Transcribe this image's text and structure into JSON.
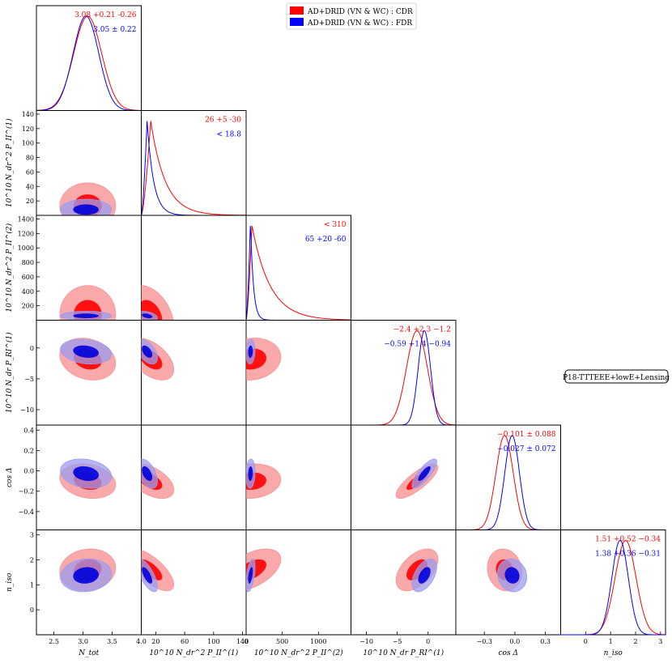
{
  "chart_data": {
    "type": "triangle-posterior",
    "legend": {
      "placement": "top-center",
      "entries": [
        {
          "label": "AD+DRID (VN & WC) : CDR",
          "color": "#ff0000"
        },
        {
          "label": "AD+DRID (VN & WC) : FDR",
          "color": "#0000ff"
        }
      ]
    },
    "data_label": "P18-TTTEEE+lowE+Lensing",
    "colors": {
      "cdr": "#ff0000",
      "fdr": "#0000ff",
      "cdr_fill_outer": "#f89494",
      "cdr_fill_inner": "#ff0000",
      "fdr_fill_outer": "#9c9cf0",
      "fdr_fill_inner": "#0000dd"
    },
    "parameters": [
      {
        "key": "ntot",
        "xlabel": "N_tot",
        "ylabel": "",
        "range": [
          2.2,
          4.0
        ],
        "ticks": [
          2.5,
          3.0,
          3.5,
          4.0
        ],
        "tick_labels": [
          "2.5",
          "3.0",
          "3.5",
          "4.0"
        ],
        "ytick_labels": [],
        "cdr": {
          "peak": 3.08,
          "sigma": 0.24,
          "dist": "gauss"
        },
        "fdr": {
          "peak": 3.05,
          "sigma": 0.22,
          "dist": "gauss"
        },
        "constraint_cdr": "3.08 +0.21 -0.26",
        "constraint_fdr": "3.05 ± 0.22"
      },
      {
        "key": "p1",
        "xlabel": "10^10 N_dr^2 P_II^(1)",
        "ylabel": "10^10 N_dr^2 P_II^(1)",
        "range": [
          0,
          145
        ],
        "ticks": [
          20,
          60,
          100,
          140
        ],
        "tick_labels": [
          "20",
          "60",
          "100",
          "140"
        ],
        "yticks": [
          20,
          40,
          60,
          80,
          100,
          120,
          140
        ],
        "ytick_labels": [
          "20",
          "40",
          "60",
          "80",
          "100",
          "120",
          "140"
        ],
        "cdr": {
          "peak": 13,
          "scale": 20,
          "dist": "skew"
        },
        "fdr": {
          "peak": 8,
          "scale": 9,
          "dist": "skew"
        },
        "constraint_cdr": "26 +5 -30",
        "constraint_fdr": "< 18.8"
      },
      {
        "key": "p2",
        "xlabel": "10^10 N_dr^2 P_II^(2)",
        "ylabel": "10^10 N_dr^2 P_II^(2)",
        "range": [
          0,
          1450
        ],
        "ticks": [
          0,
          500,
          1000
        ],
        "tick_labels": [
          "0",
          "500",
          "1000"
        ],
        "yticks": [
          200,
          400,
          600,
          800,
          1000,
          1200,
          1400
        ],
        "ytick_labels": [
          "200",
          "400",
          "600",
          "800",
          "1000",
          "1200",
          "1400"
        ],
        "cdr": {
          "peak": 80,
          "scale": 250,
          "dist": "skew"
        },
        "fdr": {
          "peak": 60,
          "scale": 40,
          "dist": "skew"
        },
        "constraint_cdr": "< 310",
        "constraint_fdr": "65 +20 -60"
      },
      {
        "key": "pr",
        "xlabel": "10^10 N_dr P_RI^(1)",
        "ylabel": "10^10 N_dr P_RI^(1)",
        "range": [
          -12.5,
          4.5
        ],
        "ticks": [
          -10,
          -5,
          0
        ],
        "tick_labels": [
          "−10",
          "−5",
          "0"
        ],
        "yticks": [
          -10,
          -5,
          0
        ],
        "ytick_labels": [
          "−10",
          "−5",
          "0"
        ],
        "cdr": {
          "peak": -1.8,
          "sigma": 1.7,
          "dist": "gauss"
        },
        "fdr": {
          "peak": -0.6,
          "sigma": 1.0,
          "dist": "gauss"
        },
        "constraint_cdr": "−2.4 +2.3 −1.2",
        "constraint_fdr": "−0.59 +1.4 −0.94"
      },
      {
        "key": "cosd",
        "xlabel": "cos Δ",
        "ylabel": "cos Δ",
        "range": [
          -0.58,
          0.45
        ],
        "ticks": [
          -0.3,
          0.0,
          0.3
        ],
        "tick_labels": [
          "−0.3",
          "0.0",
          "0.3"
        ],
        "yticks": [
          -0.4,
          -0.2,
          0.0,
          0.2,
          0.4
        ],
        "ytick_labels": [
          "−0.4",
          "−0.2",
          "0.0",
          "0.2",
          "0.4"
        ],
        "cdr": {
          "peak": -0.101,
          "sigma": 0.085,
          "dist": "gauss"
        },
        "fdr": {
          "peak": -0.027,
          "sigma": 0.072,
          "dist": "gauss"
        },
        "constraint_cdr": "−0.101 ± 0.088",
        "constraint_fdr": "−0.027 ± 0.072"
      },
      {
        "key": "niso",
        "xlabel": "n_iso",
        "ylabel": "n_iso",
        "range": [
          -1.0,
          3.2
        ],
        "ticks": [
          0,
          1,
          2,
          3
        ],
        "tick_labels": [
          "0",
          "1",
          "2",
          "3"
        ],
        "yticks": [
          0,
          1,
          2,
          3
        ],
        "ytick_labels": [
          "0",
          "1",
          "2",
          "3"
        ],
        "cdr": {
          "peak": 1.6,
          "sigma": 0.42,
          "dist": "gauss"
        },
        "fdr": {
          "peak": 1.38,
          "sigma": 0.33,
          "dist": "gauss"
        },
        "constraint_cdr": "1.51 +0.52 −0.34",
        "constraint_fdr": "1.38 +0.36 −0.31"
      }
    ]
  }
}
